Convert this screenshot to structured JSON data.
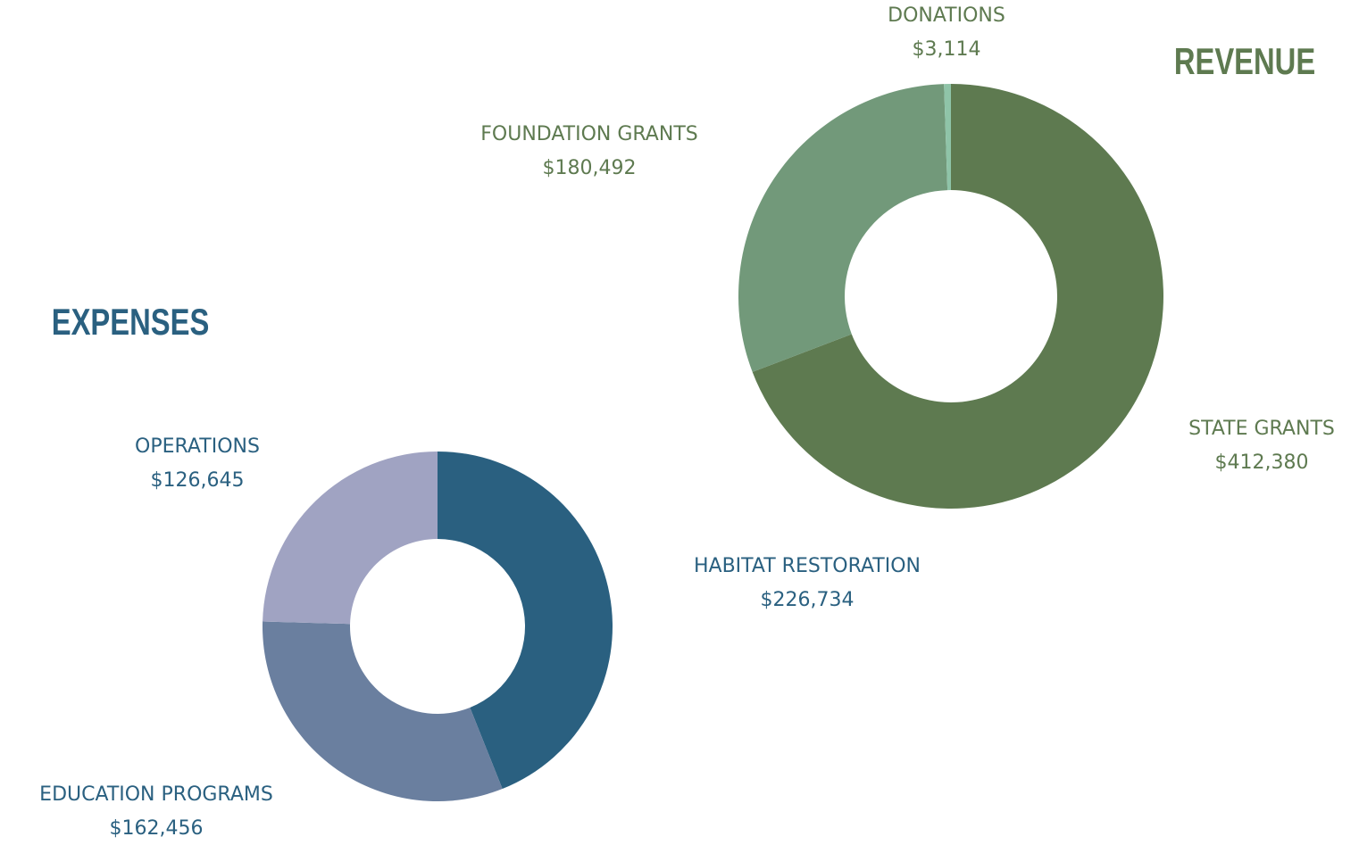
{
  "chart_data": [
    {
      "type": "pie",
      "title": "REVENUE",
      "categories": [
        "STATE GRANTS",
        "FOUNDATION GRANTS",
        "DONATIONS"
      ],
      "values": [
        412380,
        180492,
        3114
      ],
      "value_labels": [
        "$412,380",
        "$180,492",
        "$3,114"
      ],
      "colors": [
        "#5e7a50",
        "#72997a",
        "#8fc4a8"
      ],
      "text_color": "#5e7a50"
    },
    {
      "type": "pie",
      "title": "EXPENSES",
      "categories": [
        "HABITAT RESTORATION",
        "EDUCATION PROGRAMS",
        "OPERATIONS"
      ],
      "values": [
        226734,
        162456,
        126645
      ],
      "value_labels": [
        "$226,734",
        "$162,456",
        "$126,645"
      ],
      "colors": [
        "#2a6080",
        "#6a7f9f",
        "#a0a3c2"
      ],
      "text_color": "#2a6080"
    }
  ]
}
